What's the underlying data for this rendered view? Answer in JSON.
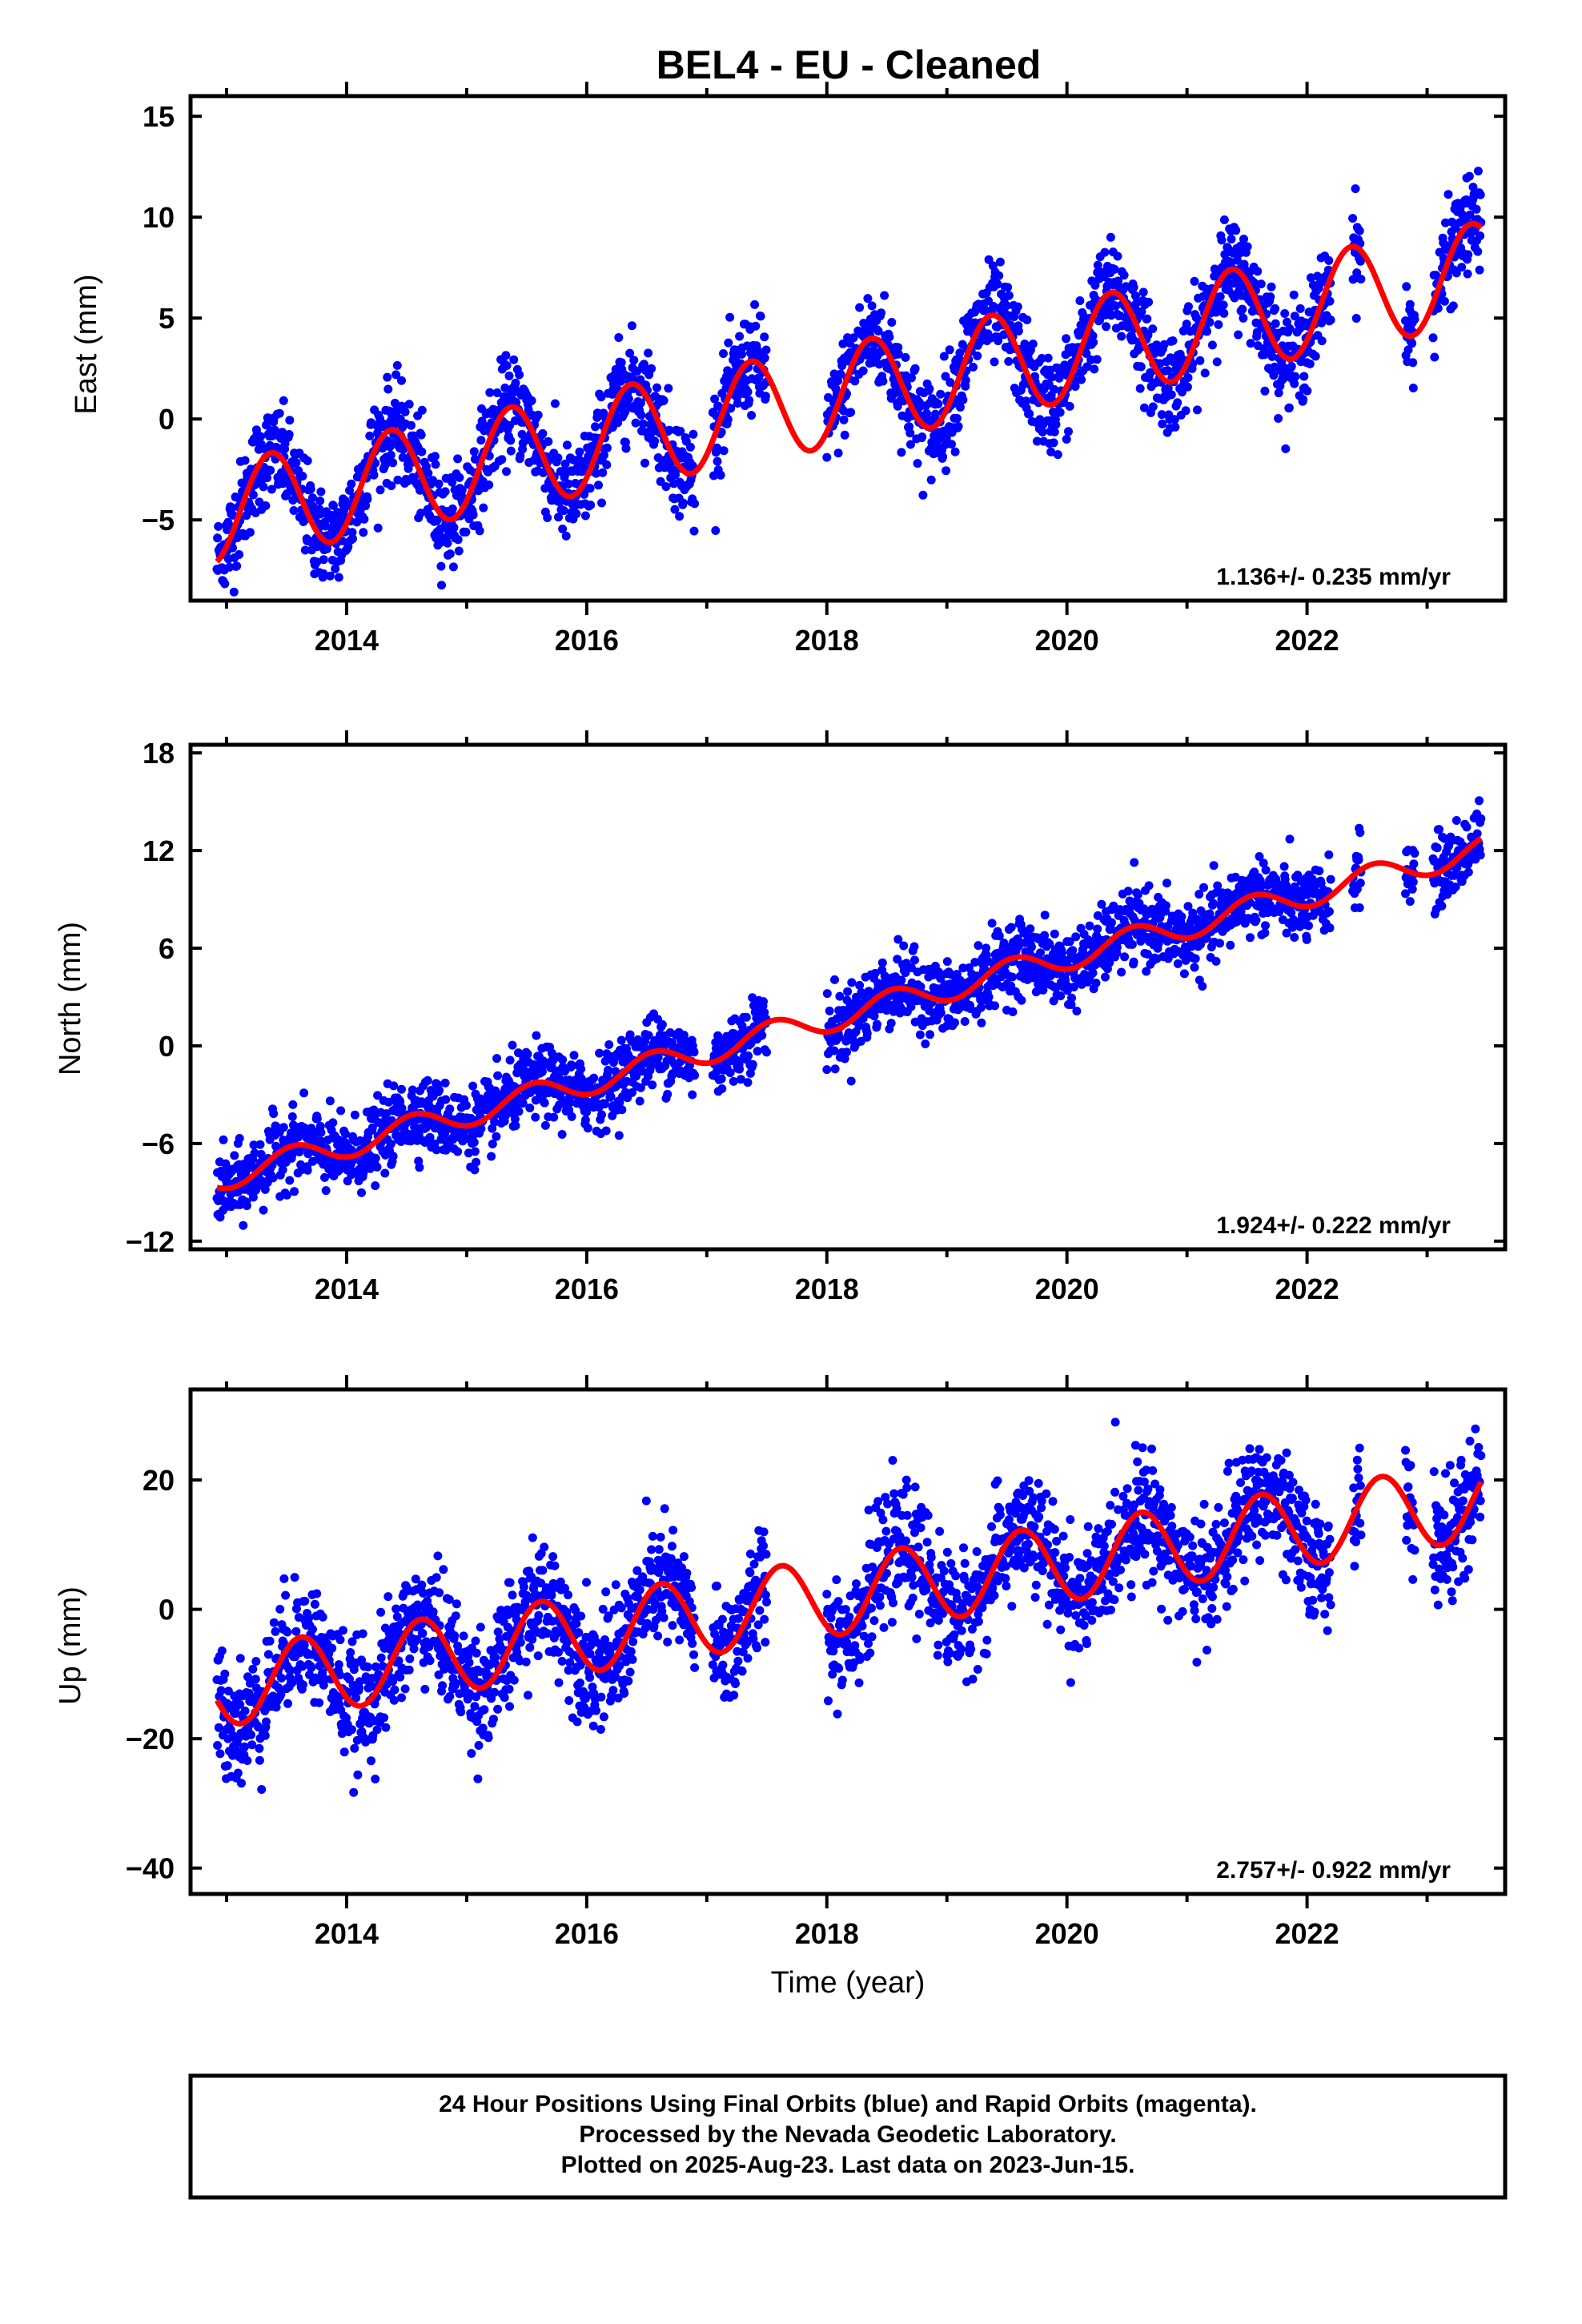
{
  "title": "BEL4  - EU - Cleaned",
  "xlabel": "Time (year)",
  "footer": {
    "line1": "24 Hour Positions Using Final Orbits (blue) and Rapid Orbits (magenta).",
    "line2": "Processed by the Nevada Geodetic Laboratory.",
    "line3": "Plotted on 2025-Aug-23. Last data on 2023-Jun-15."
  },
  "colors": {
    "points": "#0000ff",
    "model": "#ff0000",
    "frame": "#000000"
  },
  "chart_data": [
    {
      "type": "scatter",
      "component": "east",
      "ylabel": "East (mm)",
      "xlim": [
        2012.7,
        2023.65
      ],
      "ylim": [
        -9.0,
        16.0
      ],
      "yticks": [
        15,
        10,
        5,
        0,
        -5
      ],
      "xticks": [
        2014,
        2016,
        2018,
        2020,
        2022
      ],
      "rate_label": "1.136+/- 0.235 mm/yr",
      "model": {
        "offset": -4.6,
        "rate": 1.136,
        "amplitude": 2.5,
        "peak_year_fraction": 0.37
      },
      "data_spans": [
        [
          2012.92,
          2016.9
        ],
        [
          2017.05,
          2017.5
        ],
        [
          2018.0,
          2022.2
        ],
        [
          2022.38,
          2022.45
        ],
        [
          2022.82,
          2022.9
        ],
        [
          2023.05,
          2023.45
        ]
      ],
      "scatter_sigma": 1.2
    },
    {
      "type": "scatter",
      "component": "north",
      "ylabel": "North (mm)",
      "xlim": [
        2012.7,
        2023.65
      ],
      "ylim": [
        -12.5,
        18.5
      ],
      "yticks": [
        18,
        12,
        6,
        0,
        -6,
        -12
      ],
      "xticks": [
        2014,
        2016,
        2018,
        2020,
        2022
      ],
      "rate_label": "1.924+/- 0.222 mm/yr",
      "model": {
        "offset": -8.0,
        "rate": 1.924,
        "amplitude": 0.8,
        "peak_year_fraction": 0.55
      },
      "data_spans": [
        [
          2012.92,
          2016.9
        ],
        [
          2017.05,
          2017.5
        ],
        [
          2018.0,
          2022.2
        ],
        [
          2022.38,
          2022.45
        ],
        [
          2022.82,
          2022.9
        ],
        [
          2023.05,
          2023.45
        ]
      ],
      "scatter_sigma": 1.1
    },
    {
      "type": "scatter",
      "component": "up",
      "ylabel": "Up (mm)",
      "xlim": [
        2012.7,
        2023.65
      ],
      "ylim": [
        -44.0,
        34.0
      ],
      "yticks": [
        20,
        0,
        -20,
        -40
      ],
      "xticks": [
        2014,
        2016,
        2018,
        2020,
        2022
      ],
      "rate_label": "2.757+/- 0.922 mm/yr",
      "model": {
        "offset": -12.0,
        "rate": 2.757,
        "amplitude": 6.0,
        "peak_year_fraction": 0.62
      },
      "data_spans": [
        [
          2012.92,
          2016.9
        ],
        [
          2017.05,
          2017.5
        ],
        [
          2018.0,
          2022.2
        ],
        [
          2022.38,
          2022.45
        ],
        [
          2022.82,
          2022.9
        ],
        [
          2023.05,
          2023.45
        ]
      ],
      "scatter_sigma": 4.5
    }
  ]
}
